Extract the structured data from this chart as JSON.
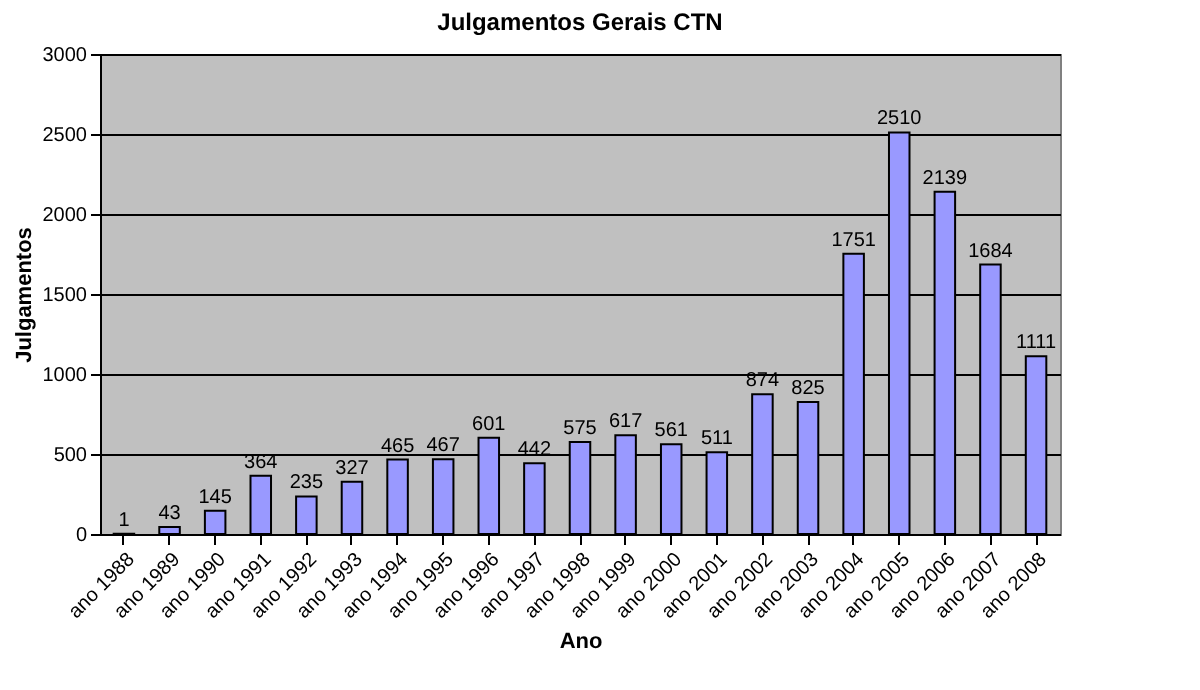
{
  "chart_data": {
    "type": "bar",
    "title": "Julgamentos Gerais CTN",
    "xlabel": "Ano",
    "ylabel": "Julgamentos",
    "categories": [
      "ano 1988",
      "ano 1989",
      "ano 1990",
      "ano 1991",
      "ano 1992",
      "ano 1993",
      "ano 1994",
      "ano 1995",
      "ano 1996",
      "ano 1997",
      "ano 1998",
      "ano 1999",
      "ano 2000",
      "ano 2001",
      "ano 2002",
      "ano 2003",
      "ano 2004",
      "ano 2005",
      "ano 2006",
      "ano 2007",
      "ano 2008"
    ],
    "values": [
      1,
      43,
      145,
      364,
      235,
      327,
      465,
      467,
      601,
      442,
      575,
      617,
      561,
      511,
      874,
      825,
      1751,
      2510,
      2139,
      1684,
      1111
    ],
    "color": "#9999ff",
    "ylim": [
      0,
      3000
    ],
    "yticks": [
      0,
      500,
      1000,
      1500,
      2000,
      2500,
      3000
    ],
    "grid": "y",
    "data_labels": true
  }
}
